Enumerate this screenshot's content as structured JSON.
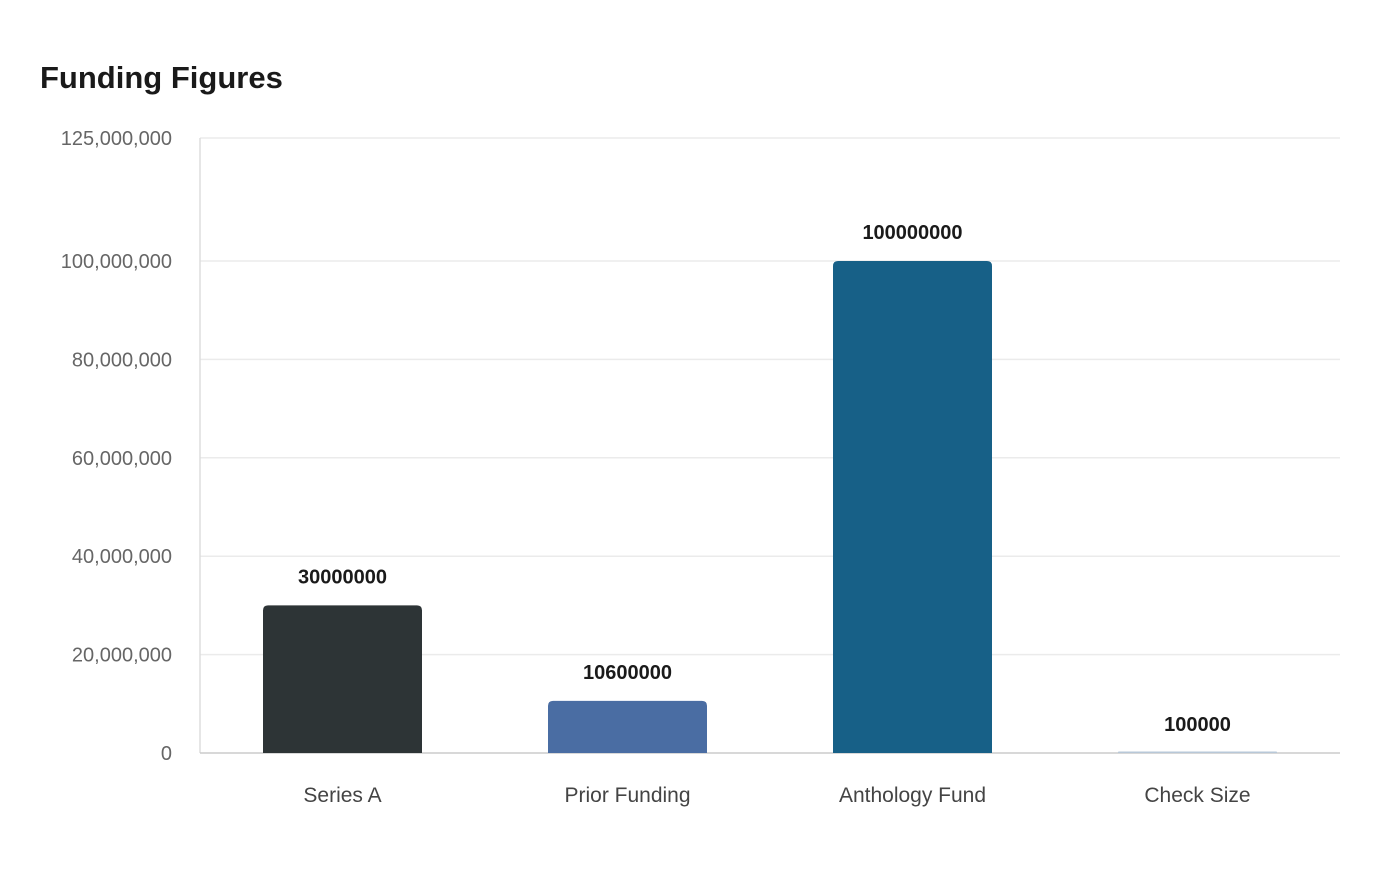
{
  "chart_data": {
    "type": "bar",
    "title": "Funding Figures",
    "xlabel": "",
    "ylabel": "",
    "categories": [
      "Series A",
      "Prior Funding",
      "Anthology Fund",
      "Check Size"
    ],
    "values": [
      30000000,
      10600000,
      100000000,
      100000
    ],
    "data_labels": [
      "30000000",
      "10600000",
      "100000000",
      "100000"
    ],
    "colors": [
      "#2d3436",
      "#4a6da3",
      "#176087",
      "#b8c8d8"
    ],
    "ylim": [
      0,
      125000000
    ],
    "y_ticks": [
      0,
      20000000,
      40000000,
      60000000,
      80000000,
      100000000,
      125000000
    ],
    "y_tick_labels": [
      "0",
      "20,000,000",
      "40,000,000",
      "60,000,000",
      "80,000,000",
      "100,000,000",
      "125,000,000"
    ],
    "grid": true,
    "legend": "none"
  }
}
